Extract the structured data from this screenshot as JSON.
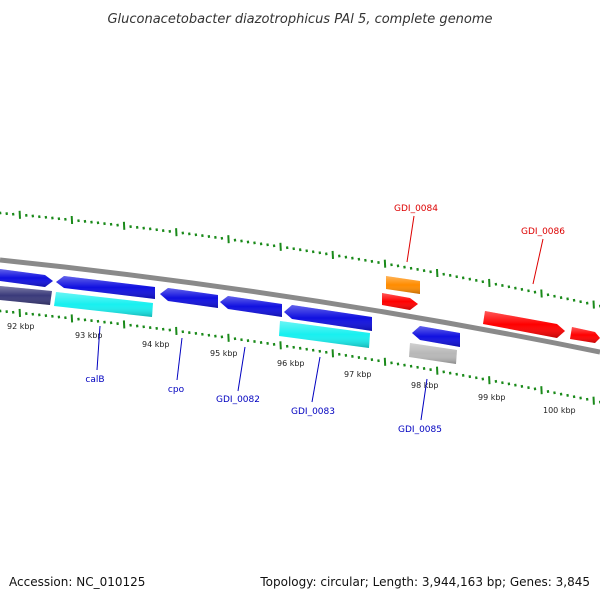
{
  "title": "Gluconacetobacter diazotrophicus PAl 5, complete genome",
  "footer": {
    "accession": "Accession: NC_010125",
    "topology": "Topology: circular; Length: 3,944,163 bp; Genes: 3,845"
  },
  "colors": {
    "cds_forward": "#1010e0",
    "cds_reverse_dark": "#3a3a7a",
    "cyan": "#18f0f0",
    "orange": "#ff8c00",
    "red": "#ff0000",
    "gray": "#b8b8b8",
    "backbone": "#8a8a8a",
    "ticks": "#1a8a1a",
    "label_blue": "#0000c0",
    "label_red": "#dd0000"
  },
  "scale_labels": [
    "92 kbp",
    "93 kbp",
    "94 kbp",
    "95 kbp",
    "96 kbp",
    "97 kbp",
    "98 kbp",
    "99 kbp",
    "100 kbp"
  ],
  "gene_labels": [
    {
      "text": "calB",
      "color": "blue"
    },
    {
      "text": "cpo",
      "color": "blue"
    },
    {
      "text": "GDI_0082",
      "color": "blue"
    },
    {
      "text": "GDI_0083",
      "color": "blue"
    },
    {
      "text": "GDI_0085",
      "color": "blue"
    },
    {
      "text": "GDI_0084",
      "color": "red"
    },
    {
      "text": "GDI_0086",
      "color": "red"
    }
  ]
}
